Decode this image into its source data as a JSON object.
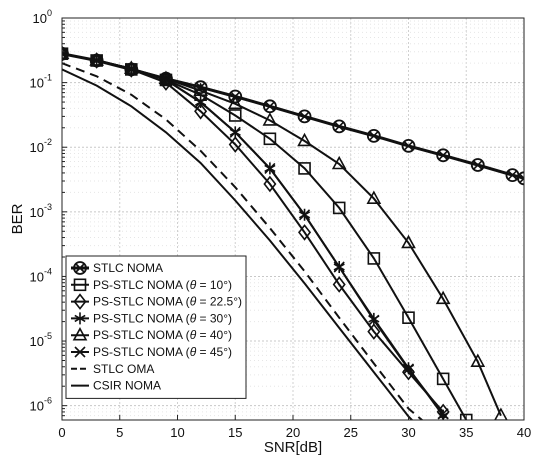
{
  "chart_data": {
    "type": "line",
    "xlabel": "SNR[dB]",
    "ylabel": "BER",
    "x_ticks": [
      "0",
      "5",
      "10",
      "15",
      "20",
      "25",
      "30",
      "35",
      "40"
    ],
    "y_scale": "log",
    "xlim": [
      0,
      40
    ],
    "ylim": [
      6e-07,
      1
    ],
    "y_tick_exponents": [
      0,
      -1,
      -2,
      -3,
      -4,
      -5,
      -6
    ],
    "y_tick_base": "10",
    "grid": true,
    "legend_position": "lower-left",
    "series": [
      {
        "name": "STLC NOMA",
        "legend_html": "STLC NOMA",
        "marker": "circle-x",
        "width": 3,
        "dash": "",
        "x": [
          0,
          3,
          6,
          9,
          12,
          15,
          18,
          21,
          24,
          27,
          30,
          33,
          36,
          39,
          40
        ],
        "y": [
          0.28,
          0.22,
          0.16,
          0.115,
          0.085,
          0.061,
          0.043,
          0.03,
          0.021,
          0.015,
          0.0105,
          0.0075,
          0.0053,
          0.0037,
          0.0033
        ]
      },
      {
        "name": "PS-STLC NOMA (θ = 10°)",
        "legend_pre": "PS-STLC NOMA (",
        "legend_theta": "θ",
        "legend_post": " = 10°)",
        "marker": "square",
        "width": 2,
        "dash": "",
        "x": [
          0,
          3,
          6,
          9,
          12,
          15,
          18,
          21,
          24,
          27,
          30,
          33,
          35
        ],
        "y": [
          0.28,
          0.22,
          0.16,
          0.11,
          0.065,
          0.031,
          0.0135,
          0.0047,
          0.00115,
          0.00019,
          2.3e-05,
          2.6e-06,
          6e-07
        ]
      },
      {
        "name": "PS-STLC NOMA (θ = 22.5°)",
        "legend_pre": "PS-STLC NOMA (",
        "legend_theta": "θ",
        "legend_post": " = 22.5°)",
        "marker": "diamond",
        "width": 2,
        "dash": "",
        "x": [
          0,
          3,
          6,
          9,
          12,
          15,
          18,
          21,
          24,
          27,
          30,
          33
        ],
        "y": [
          0.28,
          0.22,
          0.16,
          0.1,
          0.036,
          0.011,
          0.0027,
          0.00048,
          7.5e-05,
          1.4e-05,
          3.3e-06,
          8e-07
        ]
      },
      {
        "name": "PS-STLC NOMA (θ = 30°)",
        "legend_pre": "PS-STLC NOMA (",
        "legend_theta": "θ",
        "legend_post": " = 30°)",
        "marker": "asterisk",
        "width": 2,
        "dash": "",
        "x": [
          0,
          3,
          6,
          9,
          12,
          15,
          18,
          21,
          24,
          27,
          30,
          33
        ],
        "y": [
          0.28,
          0.22,
          0.165,
          0.11,
          0.05,
          0.017,
          0.0047,
          0.0009,
          0.00014,
          2.2e-05,
          3.8e-06,
          7e-07
        ]
      },
      {
        "name": "PS-STLC NOMA (θ = 40°)",
        "legend_pre": "PS-STLC NOMA (",
        "legend_theta": "θ",
        "legend_post": " = 40°)",
        "marker": "triangle",
        "width": 2,
        "dash": "",
        "x": [
          0,
          3,
          6,
          9,
          12,
          15,
          18,
          21,
          24,
          27,
          30,
          33,
          36,
          38
        ],
        "y": [
          0.28,
          0.22,
          0.165,
          0.115,
          0.075,
          0.047,
          0.026,
          0.0125,
          0.0055,
          0.0016,
          0.00033,
          4.5e-05,
          4.8e-06,
          7e-07
        ]
      },
      {
        "name": "PS-STLC NOMA (θ = 45°)",
        "legend_pre": "PS-STLC NOMA (",
        "legend_theta": "θ",
        "legend_post": " = 45°)",
        "marker": "x",
        "width": 2,
        "dash": "",
        "x": [
          0,
          3,
          6,
          9,
          12,
          15,
          18,
          21,
          24,
          27,
          30,
          33
        ],
        "y": [
          0.28,
          0.22,
          0.165,
          0.11,
          0.05,
          0.017,
          0.0047,
          0.0009,
          0.00014,
          2.1e-05,
          3.7e-06,
          7.5e-07
        ]
      },
      {
        "name": "STLC OMA",
        "legend_html": "STLC OMA",
        "marker": "none",
        "width": 2,
        "dash": "9,6",
        "x": [
          0,
          3,
          6,
          9,
          12,
          15,
          18,
          21,
          24,
          27,
          30,
          32
        ],
        "y": [
          0.2,
          0.125,
          0.065,
          0.027,
          0.0088,
          0.0024,
          0.00056,
          0.00012,
          2.3e-05,
          4.5e-06,
          9e-07,
          4.5e-07
        ]
      },
      {
        "name": "CSIR NOMA",
        "legend_html": "CSIR NOMA",
        "marker": "none",
        "width": 2,
        "dash": "",
        "x": [
          0,
          3,
          6,
          9,
          12,
          15,
          18,
          21,
          24,
          27,
          30,
          31
        ],
        "y": [
          0.16,
          0.09,
          0.043,
          0.017,
          0.0057,
          0.0015,
          0.00036,
          7.8e-05,
          1.6e-05,
          3.3e-06,
          6.8e-07,
          4.5e-07
        ]
      }
    ]
  }
}
